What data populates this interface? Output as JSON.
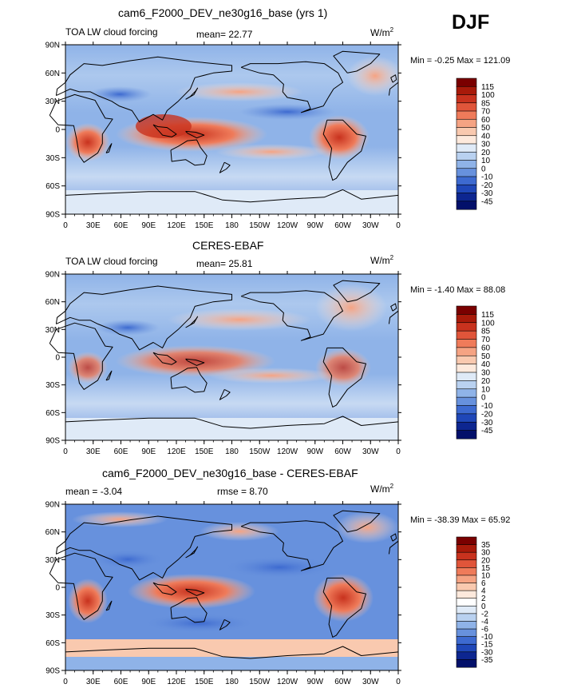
{
  "season": "DJF",
  "panels": [
    {
      "title": "cam6_F2000_DEV_ne30g16_base (yrs 1)",
      "left_label": "TOA LW cloud forcing",
      "center_label": "mean=  22.77",
      "units": "W/m",
      "units_sup": "2",
      "minmax": "Min =   -0.25 Max = 121.09",
      "colorbar": [
        "115",
        "100",
        "85",
        "70",
        "60",
        "50",
        "40",
        "30",
        "20",
        "10",
        "0",
        "-10",
        "-20",
        "-30",
        "-45"
      ],
      "colors": [
        "#7a0000",
        "#a81a0a",
        "#c8321e",
        "#e0553a",
        "#ef7b5a",
        "#f5a383",
        "#f9c9af",
        "#fde9dc",
        "#dfeaf7",
        "#b9d1f0",
        "#8fb3e8",
        "#6791dd",
        "#3d6ad0",
        "#1f47b8",
        "#0d2690",
        "#03106a"
      ]
    },
    {
      "title": "CERES-EBAF",
      "left_label": "TOA LW cloud forcing",
      "center_label": "mean=  25.81",
      "units": "W/m",
      "units_sup": "2",
      "minmax": "Min =   -1.40 Max =  88.08",
      "colorbar": [
        "115",
        "100",
        "85",
        "70",
        "60",
        "50",
        "40",
        "30",
        "20",
        "10",
        "0",
        "-10",
        "-20",
        "-30",
        "-45"
      ],
      "colors": [
        "#7a0000",
        "#a81a0a",
        "#c8321e",
        "#e0553a",
        "#ef7b5a",
        "#f5a383",
        "#f9c9af",
        "#fde9dc",
        "#dfeaf7",
        "#b9d1f0",
        "#8fb3e8",
        "#6791dd",
        "#3d6ad0",
        "#1f47b8",
        "#0d2690",
        "#03106a"
      ]
    },
    {
      "title": "cam6_F2000_DEV_ne30g16_base - CERES-EBAF",
      "left_label": "mean =   -3.04",
      "center_label": "rmse =    8.70",
      "units": "W/m",
      "units_sup": "2",
      "minmax": "Min = -38.39 Max =  65.92",
      "colorbar": [
        "35",
        "30",
        "20",
        "15",
        "10",
        "6",
        "4",
        "2",
        "0",
        "-2",
        "-4",
        "-6",
        "-10",
        "-15",
        "-30",
        "-35"
      ],
      "colors": [
        "#7a0000",
        "#a81a0a",
        "#c8321e",
        "#e0553a",
        "#ef7b5a",
        "#f5a383",
        "#f9c9af",
        "#fde9dc",
        "#ffffff",
        "#dfeaf7",
        "#b9d1f0",
        "#8fb3e8",
        "#6791dd",
        "#3d6ad0",
        "#1f47b8",
        "#0d2690",
        "#03106a"
      ]
    }
  ],
  "lat_labels": [
    "90N",
    "60N",
    "30N",
    "0",
    "30S",
    "60S",
    "90S"
  ],
  "lon_labels": [
    "0",
    "30E",
    "60E",
    "90E",
    "120E",
    "150E",
    "180",
    "150W",
    "120W",
    "90W",
    "60W",
    "30W",
    "0"
  ]
}
